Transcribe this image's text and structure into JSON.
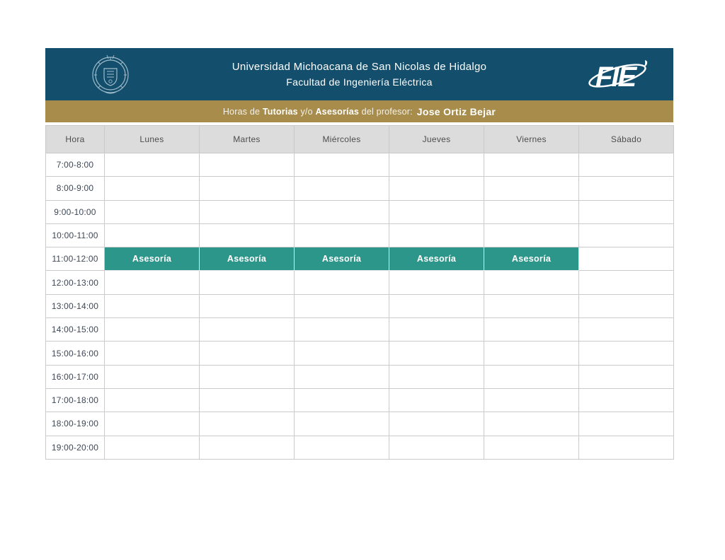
{
  "header": {
    "title_line1": "Universidad Michoacana de San Nicolas de Hidalgo",
    "title_line2": "Facultad de Ingeniería Eléctrica",
    "fie_text": "FIE",
    "bg_color": "#134F6C",
    "left_logo": "umsnh-seal-icon",
    "right_logo": "fie-logo-icon"
  },
  "banner": {
    "prefix": "Horas de ",
    "bold1": "Tutorias",
    "middle": " y/o ",
    "bold2": "Asesorías",
    "suffix": " del profesor:",
    "professor": "Jose Ortiz Bejar",
    "bg_color": "#A78C4C"
  },
  "schedule": {
    "columns": [
      "Hora",
      "Lunes",
      "Martes",
      "Miércoles",
      "Jueves",
      "Viernes",
      "Sábado"
    ],
    "event_label": "Asesoría",
    "event_color": "#2D968A",
    "rows": [
      {
        "time": "7:00-8:00",
        "cells": [
          "",
          "",
          "",
          "",
          "",
          ""
        ]
      },
      {
        "time": "8:00-9:00",
        "cells": [
          "",
          "",
          "",
          "",
          "",
          ""
        ]
      },
      {
        "time": "9:00-10:00",
        "cells": [
          "",
          "",
          "",
          "",
          "",
          ""
        ]
      },
      {
        "time": "10:00-11:00",
        "cells": [
          "",
          "",
          "",
          "",
          "",
          ""
        ]
      },
      {
        "time": "11:00-12:00",
        "cells": [
          "Asesoría",
          "Asesoría",
          "Asesoría",
          "Asesoría",
          "Asesoría",
          ""
        ]
      },
      {
        "time": "12:00-13:00",
        "cells": [
          "",
          "",
          "",
          "",
          "",
          ""
        ]
      },
      {
        "time": "13:00-14:00",
        "cells": [
          "",
          "",
          "",
          "",
          "",
          ""
        ]
      },
      {
        "time": "14:00-15:00",
        "cells": [
          "",
          "",
          "",
          "",
          "",
          ""
        ]
      },
      {
        "time": "15:00-16:00",
        "cells": [
          "",
          "",
          "",
          "",
          "",
          ""
        ]
      },
      {
        "time": "16:00-17:00",
        "cells": [
          "",
          "",
          "",
          "",
          "",
          ""
        ]
      },
      {
        "time": "17:00-18:00",
        "cells": [
          "",
          "",
          "",
          "",
          "",
          ""
        ]
      },
      {
        "time": "18:00-19:00",
        "cells": [
          "",
          "",
          "",
          "",
          "",
          ""
        ]
      },
      {
        "time": "19:00-20:00",
        "cells": [
          "",
          "",
          "",
          "",
          "",
          ""
        ]
      }
    ]
  }
}
